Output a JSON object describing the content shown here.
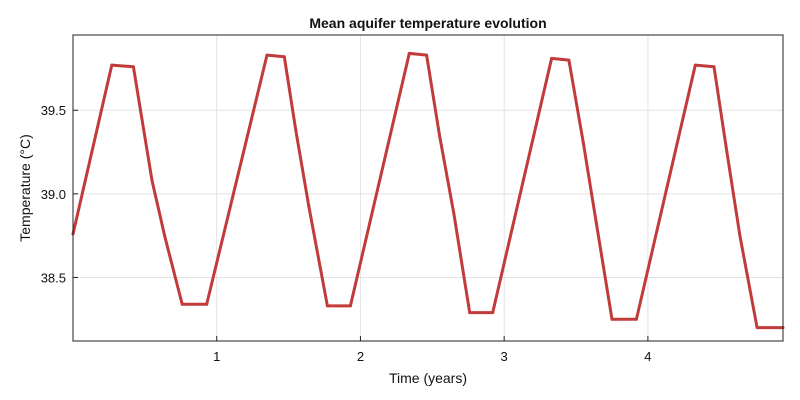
{
  "chart_data": {
    "type": "line",
    "title": "Mean aquifer temperature evolution",
    "xlabel": "Time (years)",
    "ylabel": "Temperature (°C)",
    "xlim": [
      0.0,
      4.94
    ],
    "ylim": [
      38.12,
      39.95
    ],
    "xticks": [
      1,
      2,
      3,
      4
    ],
    "xtick_labels": [
      "1",
      "2",
      "3",
      "4"
    ],
    "yticks": [
      38.5,
      39.0,
      39.5
    ],
    "ytick_labels": [
      "38.5",
      "39.0",
      "39.5"
    ],
    "grid": true,
    "legend": "none",
    "series": [
      {
        "color": "#c23b3b",
        "x": [
          0.0,
          0.27,
          0.42,
          0.55,
          0.64,
          0.76,
          0.93,
          1.35,
          1.47,
          1.55,
          1.64,
          1.77,
          1.93,
          2.34,
          2.46,
          2.55,
          2.65,
          2.76,
          2.92,
          3.33,
          3.45,
          3.55,
          3.64,
          3.75,
          3.92,
          4.33,
          4.46,
          4.55,
          4.64,
          4.76,
          4.94
        ],
        "y": [
          38.76,
          39.77,
          39.76,
          39.08,
          38.74,
          38.34,
          38.34,
          39.83,
          39.82,
          39.38,
          38.93,
          38.33,
          38.33,
          39.84,
          39.83,
          39.35,
          38.88,
          38.29,
          38.29,
          39.81,
          39.8,
          39.31,
          38.83,
          38.25,
          38.25,
          39.77,
          39.76,
          39.25,
          38.75,
          38.2,
          38.2
        ]
      }
    ]
  }
}
